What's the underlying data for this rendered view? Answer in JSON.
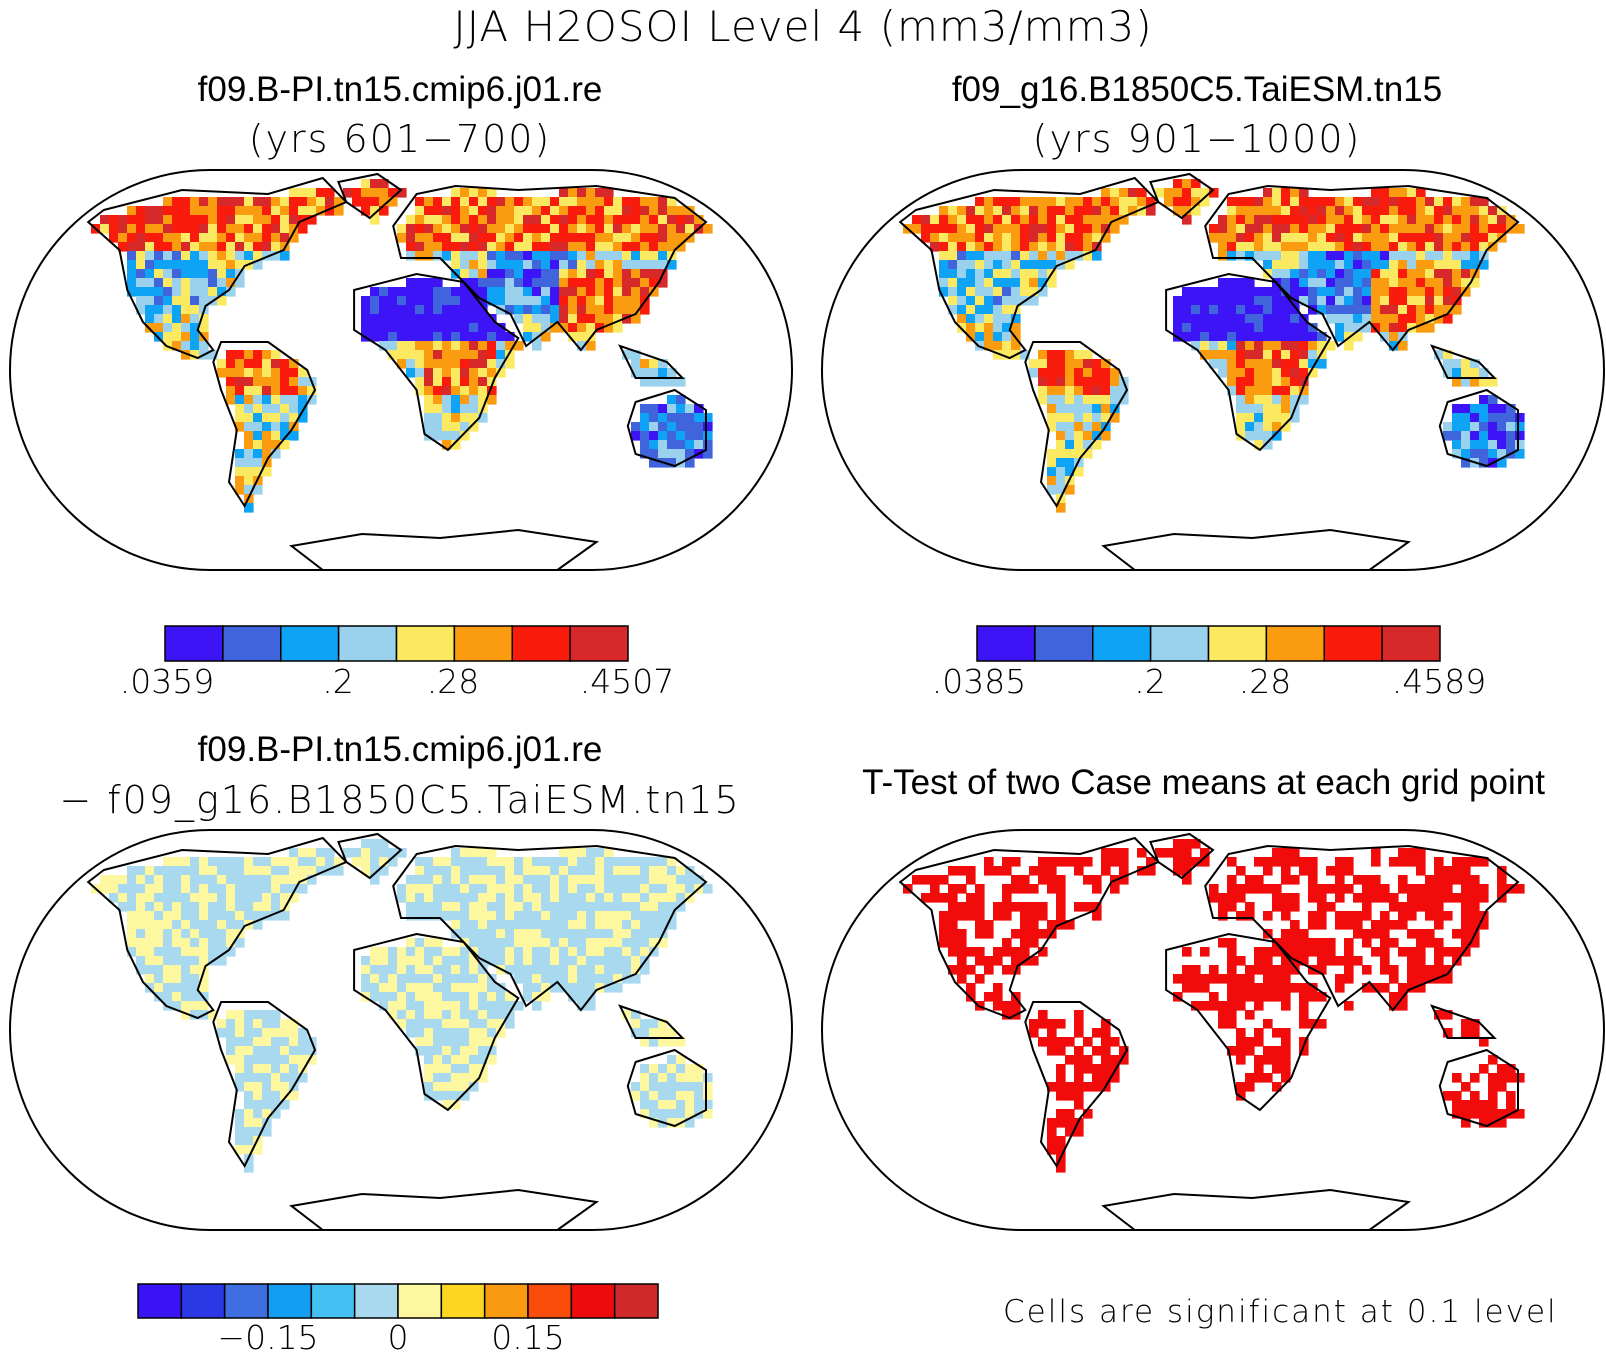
{
  "title": "JJA H2OSOI Level 4 (mm3/mm3)",
  "colors": {
    "abs_levels": [
      "#3d14f5",
      "#3f64dc",
      "#0fa3f5",
      "#9ad2ee",
      "#fbe962",
      "#fb9b0f",
      "#f91c0d",
      "#d7282a"
    ],
    "diff_levels": [
      "#3a14f5",
      "#2a38e6",
      "#3f6ee0",
      "#149ef2",
      "#45c0f2",
      "#a9d9ef",
      "#fdf7a0",
      "#fbd722",
      "#fa9a11",
      "#fa4d0c",
      "#ec0c0c",
      "#d12a2a"
    ],
    "significant": "#f20b0b"
  },
  "panels": {
    "top_left": {
      "title": "f09.B-PI.tn15.cmip6.j01.re",
      "subtitle": "(yrs 601−700)",
      "colorbar_ticks": [
        ".0359",
        ".2",
        ".28",
        ".4507"
      ]
    },
    "top_right": {
      "title": "f09_g16.B1850C5.TaiESM.tn15",
      "subtitle": "(yrs 901−1000)",
      "colorbar_ticks": [
        ".0385",
        ".2",
        ".28",
        ".4589"
      ]
    },
    "bottom_left": {
      "title": "f09.B-PI.tn15.cmip6.j01.re",
      "subtitle": "− f09_g16.B1850C5.TaiESM.tn15",
      "colorbar_ticks": [
        "−0.15",
        "0",
        "0.15"
      ]
    },
    "bottom_right": {
      "title": "T-Test of two Case means at each grid point",
      "note": "Cells are significant at 0.1 level"
    }
  }
}
